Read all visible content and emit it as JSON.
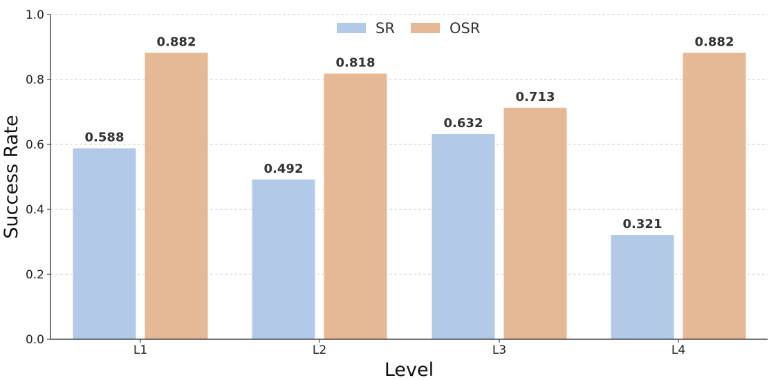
{
  "chart_data": {
    "type": "bar",
    "categories": [
      "L1",
      "L2",
      "L3",
      "L4"
    ],
    "series": [
      {
        "name": "SR",
        "color": "#b3c9e8",
        "values": [
          0.588,
          0.492,
          0.632,
          0.321
        ]
      },
      {
        "name": "OSR",
        "color": "#e6b996",
        "values": [
          0.882,
          0.818,
          0.713,
          0.882
        ]
      }
    ],
    "title": "",
    "xlabel": "Level",
    "ylabel": "Success Rate",
    "ylim": [
      0.0,
      1.0
    ],
    "yticks": [
      "0.0",
      "0.2",
      "0.4",
      "0.6",
      "0.8",
      "1.0"
    ],
    "value_labels": [
      [
        "0.588",
        "0.492",
        "0.632",
        "0.321"
      ],
      [
        "0.882",
        "0.818",
        "0.713",
        "0.882"
      ]
    ],
    "grid": true,
    "legend_position": "top-center"
  }
}
